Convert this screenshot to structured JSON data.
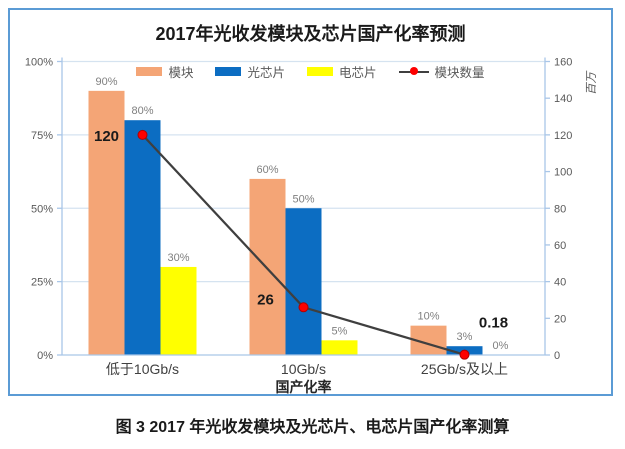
{
  "figure": {
    "caption": "图 3 2017 年光收发模块及光芯片、电芯片国产化率测算"
  },
  "chart_data": {
    "type": "bar",
    "combo": "clustered bars (left % axis) + line with markers (right axis, millions)",
    "title": "2017年光收发模块及芯片国产化率预测",
    "categories": [
      "低于10Gb/s",
      "10Gb/s",
      "25Gb/s及以上"
    ],
    "series": [
      {
        "kind": "bar",
        "key": "module",
        "name": "模块",
        "color": "#F4A576",
        "values_pct": [
          90,
          60,
          10
        ],
        "labels": [
          "90%",
          "60%",
          "10%"
        ]
      },
      {
        "kind": "bar",
        "key": "optical-chip",
        "name": "光芯片",
        "color": "#0C6DC2",
        "values_pct": [
          80,
          50,
          3
        ],
        "labels": [
          "80%",
          "50%",
          "3%"
        ]
      },
      {
        "kind": "bar",
        "key": "electrical-chip",
        "name": "电芯片",
        "color": "#FFFF00",
        "values_pct": [
          30,
          5,
          0
        ],
        "labels": [
          "30%",
          "5%",
          "0%"
        ]
      },
      {
        "kind": "line",
        "key": "module-count",
        "name": "模块数量",
        "color": "#3F3F3F",
        "marker_color": "#FE0000",
        "marker_edge": "#B00000",
        "values_millions": [
          120,
          26,
          0.18
        ],
        "labels": [
          "120",
          "26",
          "0.18"
        ]
      }
    ],
    "left_axis": {
      "min": 0,
      "max": 100,
      "ticks": [
        "0%",
        "25%",
        "50%",
        "75%",
        "100%"
      ]
    },
    "right_axis": {
      "min": 0,
      "max": 160,
      "ticks": [
        "0",
        "20",
        "40",
        "60",
        "80",
        "100",
        "120",
        "140",
        "160"
      ],
      "unit_label": "百万"
    },
    "x_axis_title": "国产化率",
    "legend_position": "top",
    "grid": "horizontal",
    "colors": {
      "frame_border": "#5B9BD5",
      "gridline": "#D5E3F0",
      "axis_line": "#A9C6E8",
      "tick_text": "#595959",
      "bar_label_text": "#7F7F7F",
      "category_text": "#404040",
      "value_label_text": "#1a1a1a"
    }
  }
}
